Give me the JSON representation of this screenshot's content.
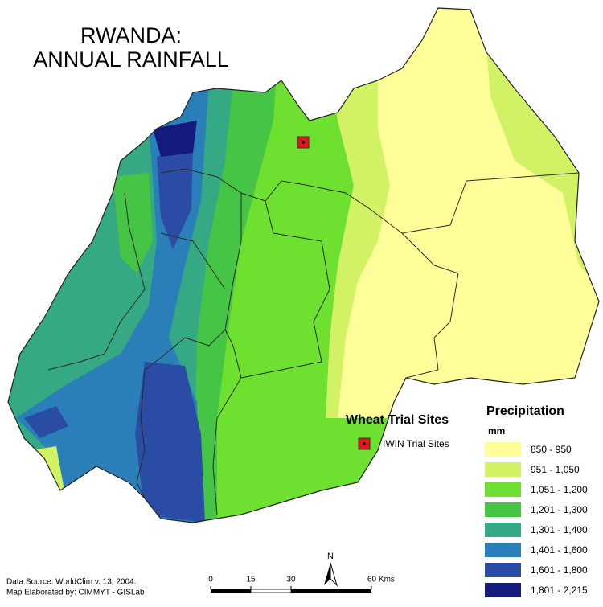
{
  "title": [
    "RWANDA:",
    "ANNUAL RAINFALL"
  ],
  "sites_legend": {
    "title": "Wheat Trial Sites",
    "items": [
      {
        "label": "IWIN Trial Sites",
        "color": "#e8141c"
      }
    ]
  },
  "precipitation_legend": {
    "title": "Precipitation",
    "unit": "mm",
    "classes": [
      {
        "label": "850 - 950",
        "color": "#ffff99"
      },
      {
        "label": "951 - 1,050",
        "color": "#d2f266"
      },
      {
        "label": "1,051 - 1,200",
        "color": "#6ee030"
      },
      {
        "label": "1,201 - 1,300",
        "color": "#45c446"
      },
      {
        "label": "1,301 - 1,400",
        "color": "#35a884"
      },
      {
        "label": "1,401 - 1,600",
        "color": "#2a7fb8"
      },
      {
        "label": "1,601 - 1,800",
        "color": "#2a4ca4"
      },
      {
        "label": "1,801 - 2,215",
        "color": "#161a7e"
      }
    ]
  },
  "scale_bar": {
    "ticks": [
      "0",
      "15",
      "30",
      "60 Kms"
    ]
  },
  "north_arrow": "N",
  "source": [
    "Data Source: WorldClim v. 13, 2004.",
    "Map Elaborated by: CIMMYT - GISLab"
  ]
}
